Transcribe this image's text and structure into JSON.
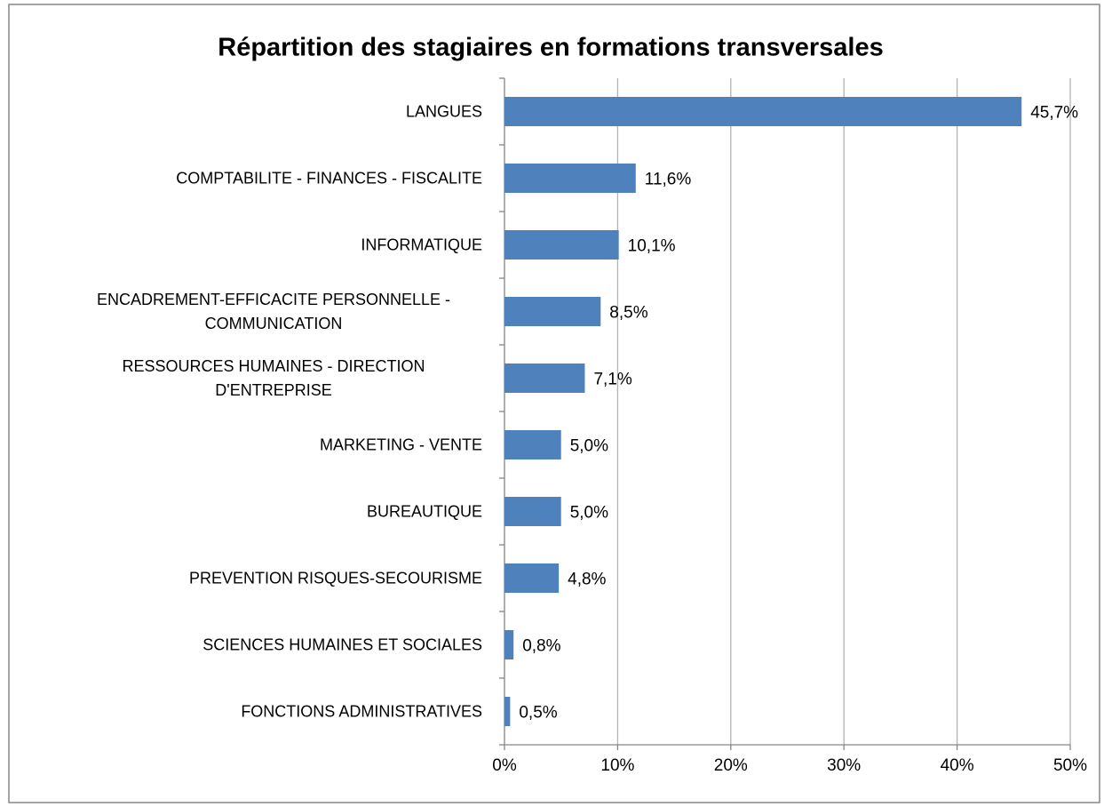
{
  "chart_data": {
    "type": "bar",
    "orientation": "horizontal",
    "title": "Répartition des stagiaires en formations transversales",
    "categories": [
      "LANGUES",
      "COMPTABILITE - FINANCES - FISCALITE",
      "INFORMATIQUE",
      "ENCADREMENT-EFFICACITE PERSONNELLE - COMMUNICATION",
      "RESSOURCES HUMAINES - DIRECTION D'ENTREPRISE",
      "MARKETING - VENTE",
      "BUREAUTIQUE",
      "PREVENTION RISQUES-SECOURISME",
      "SCIENCES HUMAINES ET SOCIALES",
      "FONCTIONS ADMINISTRATIVES"
    ],
    "values": [
      45.7,
      11.6,
      10.1,
      8.5,
      7.1,
      5.0,
      5.0,
      4.8,
      0.8,
      0.5
    ],
    "value_labels": [
      "45,7%",
      "11,6%",
      "10,1%",
      "8,5%",
      "7,1%",
      "5,0%",
      "5,0%",
      "4,8%",
      "0,8%",
      "0,5%"
    ],
    "color": "#4f81bd",
    "xlim": [
      0,
      50
    ],
    "xticks": [
      {
        "value": 0,
        "label": "0%"
      },
      {
        "value": 10,
        "label": "10%"
      },
      {
        "value": 20,
        "label": "20%"
      },
      {
        "value": 30,
        "label": "30%"
      },
      {
        "value": 40,
        "label": "40%"
      },
      {
        "value": 50,
        "label": "50%"
      }
    ],
    "grid": true
  }
}
